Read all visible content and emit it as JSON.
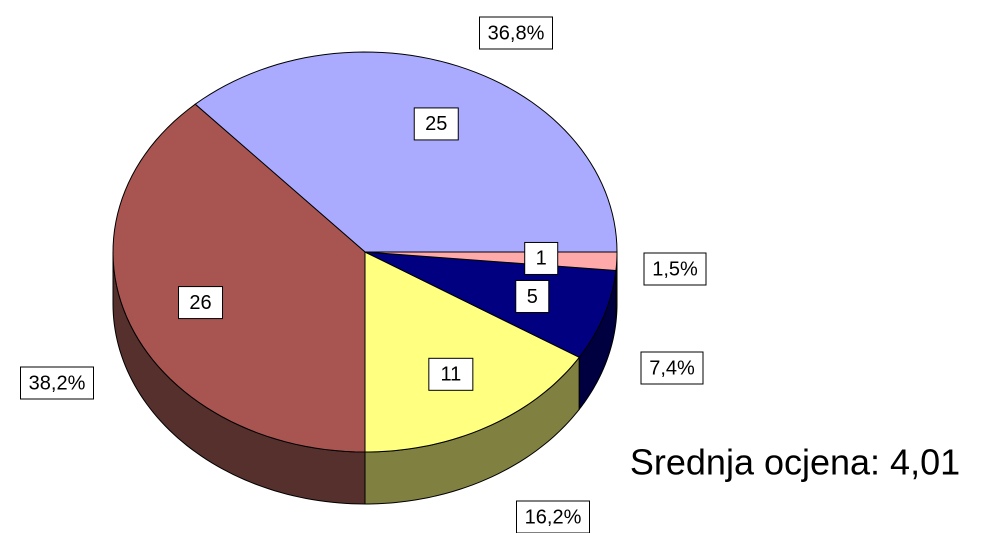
{
  "chart_data": {
    "type": "pie3d",
    "values": [
      25,
      26,
      11,
      5,
      1
    ],
    "percent_labels": [
      "36,8%",
      "38,2%",
      "16,2%",
      "7,4%",
      "1,5%"
    ],
    "colors": [
      "#aaaaff",
      "#a85552",
      "#ffff80",
      "#000080",
      "#ffaaaa"
    ],
    "side_colors": [
      "#55557f",
      "#56302c",
      "#808040",
      "#000040",
      "#805555"
    ],
    "annotation": "Srednja ocjena: 4,01"
  }
}
